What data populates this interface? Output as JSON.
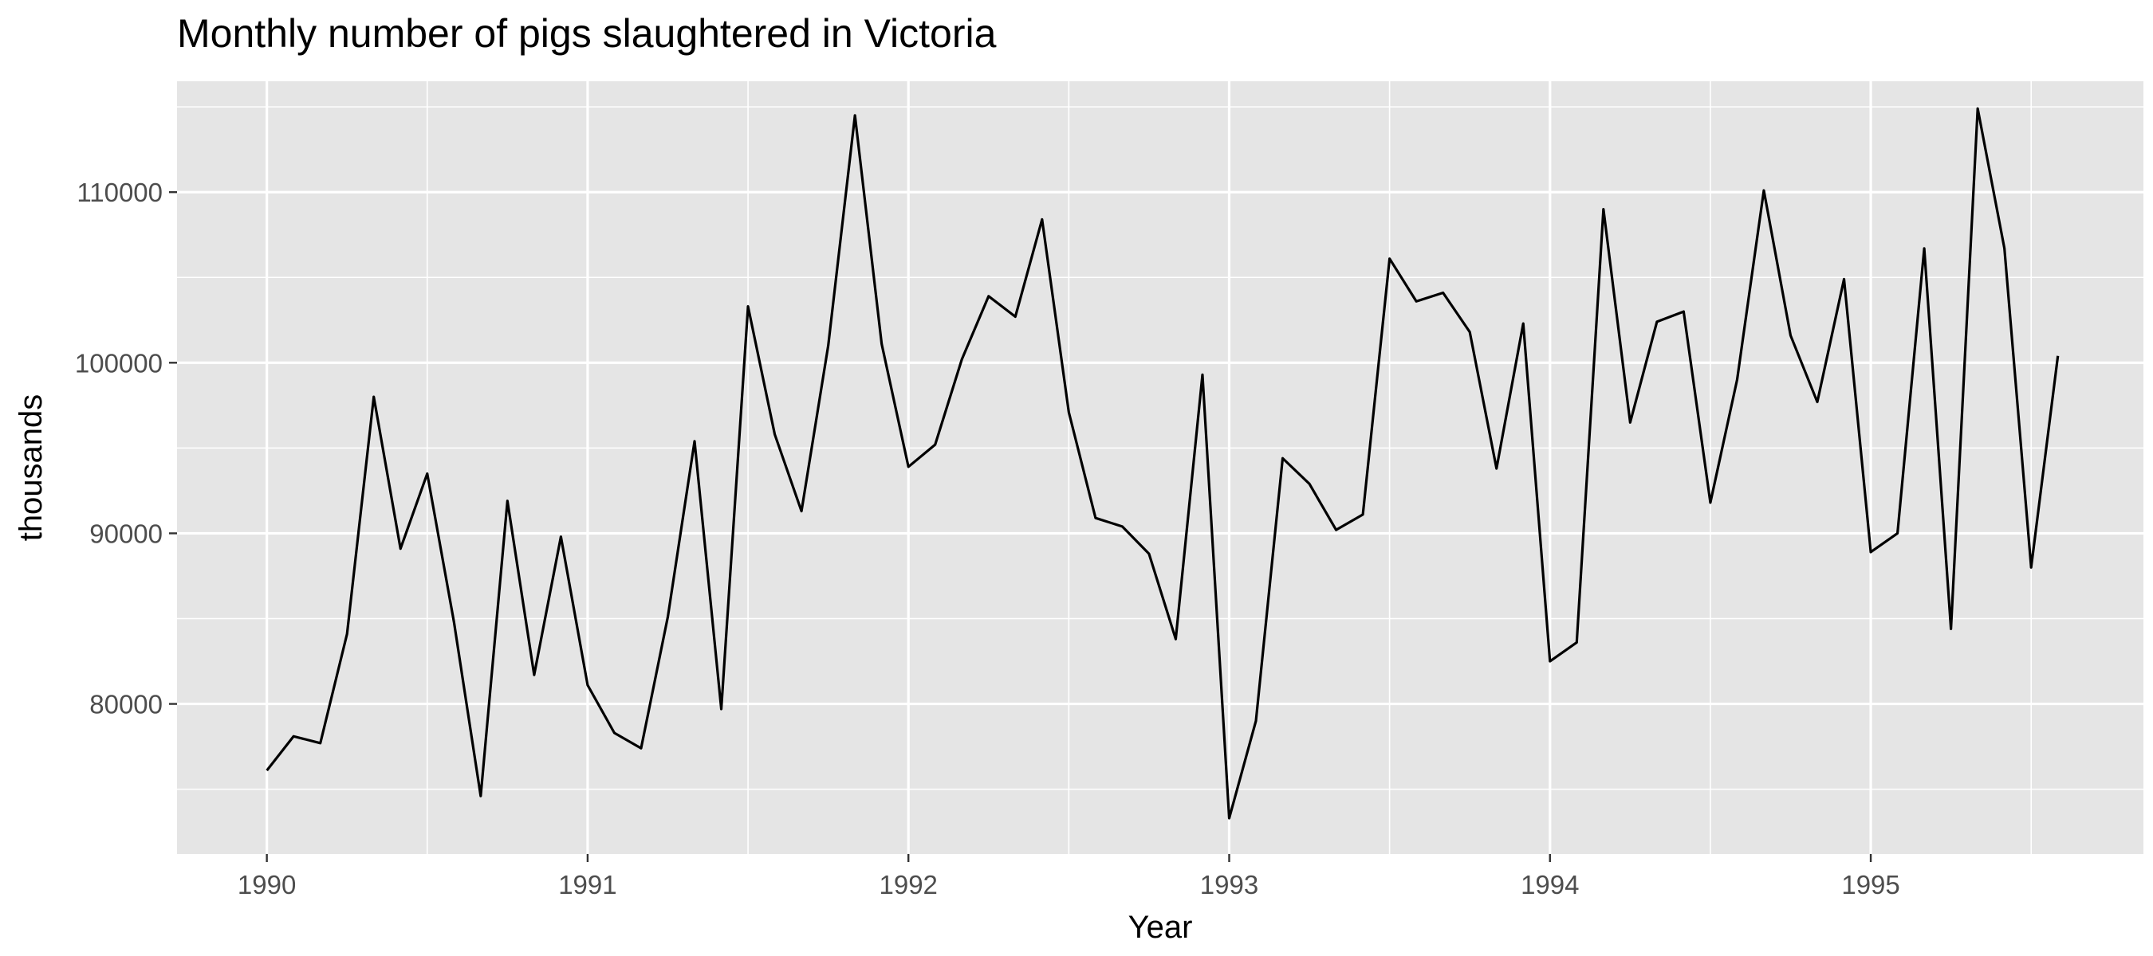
{
  "chart_data": {
    "type": "line",
    "title": "Monthly number of pigs slaughtered in Victoria",
    "xlabel": "Year",
    "ylabel": "thousands",
    "grid": true,
    "xlim": [
      1989.72,
      1995.85
    ],
    "ylim": [
      71200,
      116500
    ],
    "x_ticks": [
      1990,
      1991,
      1992,
      1993,
      1994,
      1995
    ],
    "x_tick_labels": [
      "1990",
      "1991",
      "1992",
      "1993",
      "1994",
      "1995"
    ],
    "y_ticks": [
      80000,
      90000,
      100000,
      110000
    ],
    "y_tick_labels": [
      "80000",
      "90000",
      "100000",
      "110000"
    ],
    "series": [
      {
        "x_start": 1990,
        "frequency": 12,
        "values": [
          76100,
          78100,
          77700,
          84100,
          98000,
          89100,
          93500,
          84800,
          74600,
          91900,
          81700,
          89800,
          81100,
          78300,
          77400,
          85100,
          95400,
          79700,
          103300,
          95800,
          91300,
          101000,
          114500,
          101100,
          93900,
          95200,
          100200,
          103900,
          102700,
          108400,
          97100,
          90900,
          90400,
          88800,
          83800,
          99300,
          73300,
          79000,
          94400,
          92900,
          90200,
          91100,
          106100,
          103600,
          104100,
          101800,
          93800,
          102300,
          82500,
          83600,
          109000,
          96500,
          102400,
          103000,
          91800,
          99000,
          110100,
          101600,
          97700,
          104900,
          88900,
          90000,
          106700,
          84400,
          114900,
          106700,
          88000,
          100400
        ]
      }
    ]
  }
}
